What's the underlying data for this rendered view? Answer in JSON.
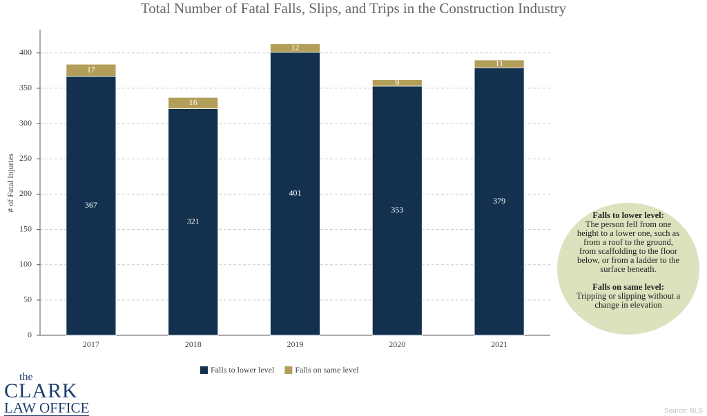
{
  "chart_data": {
    "type": "stacked_bar",
    "title": "Total Number of Fatal Falls, Slips, and Trips in the Construction Industry",
    "y_label": "# of Fatal Injuries",
    "categories": [
      "2017",
      "2018",
      "2019",
      "2020",
      "2021"
    ],
    "series": [
      {
        "name": "Falls to lower level",
        "color": "#13314f",
        "values": [
          367,
          321,
          401,
          353,
          379
        ]
      },
      {
        "name": "Falls on same level",
        "color": "#b39e5a",
        "values": [
          17,
          16,
          12,
          9,
          11
        ]
      }
    ],
    "ylim": [
      0,
      433
    ],
    "yticks": [
      0,
      50,
      100,
      150,
      200,
      250,
      300,
      350,
      400
    ],
    "grid": true,
    "legend": "bottom",
    "annotation": [
      {
        "heading": "Falls to lower level:",
        "text": "The person fell from one height to a lower one, such as from a roof to the ground, from scaffolding to the floor below, or from a ladder to the surface beneath."
      },
      {
        "heading": "Falls on same level:",
        "text": "Tripping or slipping without a change in elevation"
      }
    ],
    "source": "Source: BLS"
  },
  "logo": {
    "small": "the",
    "name": "CLARK",
    "line2": "LAW OFFICE"
  }
}
